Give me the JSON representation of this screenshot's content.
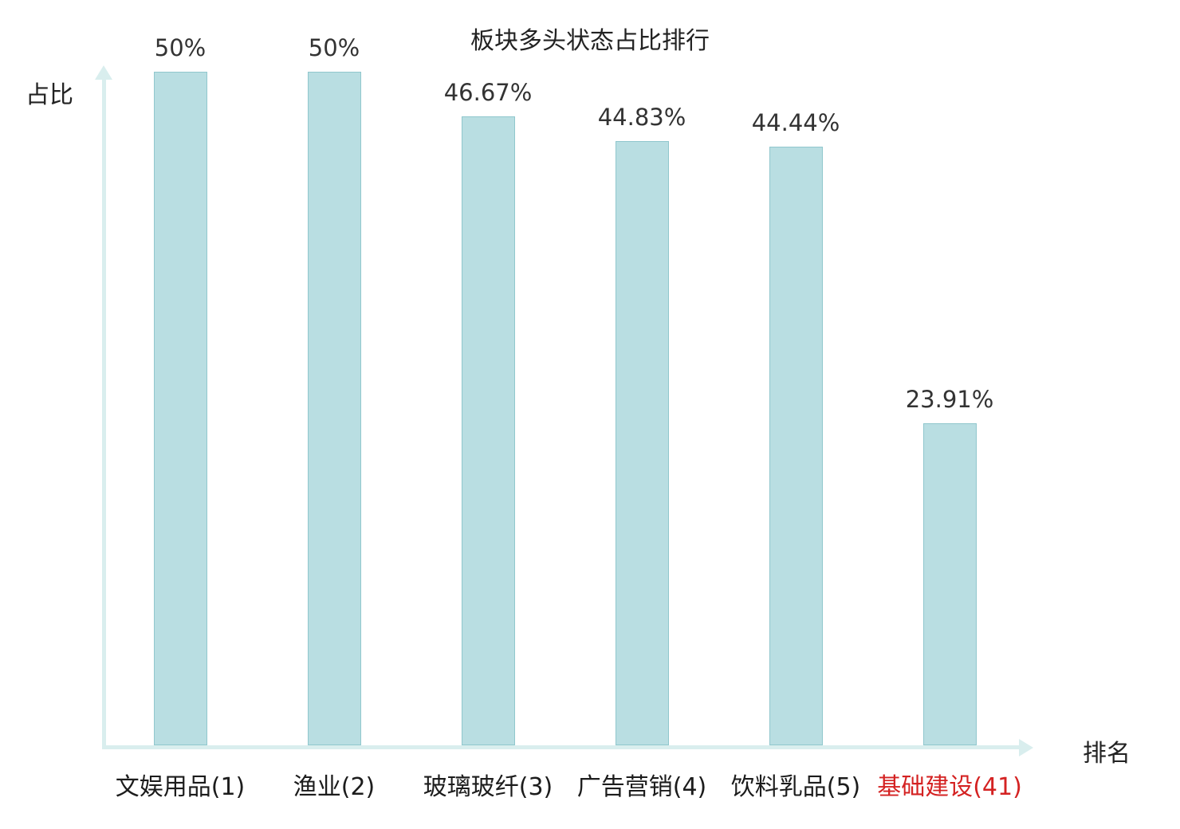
{
  "chart_data": {
    "type": "bar",
    "title": "板块多头状态占比排行",
    "ylabel": "占比",
    "xlabel": "排名",
    "categories": [
      "文娱用品(1)",
      "渔业(2)",
      "玻璃玻纤(3)",
      "广告营销(4)",
      "饮料乳品(5)",
      "基础建设(41)"
    ],
    "values": [
      50,
      50,
      46.67,
      44.83,
      44.44,
      23.91
    ],
    "value_labels": [
      "50%",
      "50%",
      "46.67%",
      "44.83%",
      "44.44%",
      "23.91%"
    ],
    "ylim": [
      0,
      50
    ],
    "grid": false,
    "legend": "none",
    "highlight_index": 5,
    "colors": {
      "bar_fill": "#b9dee2",
      "bar_border": "#90c7cd",
      "axis": "#d9eeee",
      "text": "#333333",
      "category_text": "#1c1c1c",
      "highlight": "#d42222",
      "background": "#ffffff"
    }
  }
}
